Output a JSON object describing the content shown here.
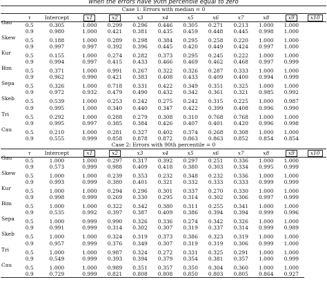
{
  "caption": "when the errors have 90th percentile equal to zero",
  "headers": [
    "τ",
    "Intercept",
    "x1",
    "x2",
    "x3",
    "x4",
    "x5",
    "x6",
    "x7",
    "x8",
    "x9",
    "x10"
  ],
  "boxed_headers": [
    "x1",
    "x2",
    "x9",
    "x10"
  ],
  "cases": [
    {
      "title": "Case 1: Errors with median = 0",
      "groups": [
        {
          "dist": "Gau",
          "rows": [
            {
              "tau": "0.5",
              "values": [
                "0.305",
                "1.000",
                "0.299",
                "0.296",
                "0.446",
                "0.305",
                "0.271",
                "0.213",
                "1.000",
                "1.000"
              ]
            },
            {
              "tau": "0.9",
              "values": [
                "0.980",
                "1.000",
                "0.421",
                "0.381",
                "0.435",
                "0.459",
                "0.448",
                "0.445",
                "0.998",
                "1.000"
              ]
            }
          ]
        },
        {
          "dist": "Skew",
          "rows": [
            {
              "tau": "0.5",
              "values": [
                "0.188",
                "1.000",
                "0.289",
                "0.298",
                "0.384",
                "0.295",
                "0.258",
                "0.220",
                "1.000",
                "1.000"
              ]
            },
            {
              "tau": "0.9",
              "values": [
                "0.997",
                "0.997",
                "0.392",
                "0.396",
                "0.445",
                "0.420",
                "0.449",
                "0.424",
                "0.997",
                "1.000"
              ]
            }
          ]
        },
        {
          "dist": "Kur",
          "rows": [
            {
              "tau": "0.5",
              "values": [
                "0.155",
                "1.000",
                "0.274",
                "0.282",
                "0.373",
                "0.295",
                "0.245",
                "0.222",
                "1.000",
                "1.000"
              ]
            },
            {
              "tau": "0.9",
              "values": [
                "0.994",
                "0.997",
                "0.415",
                "0.433",
                "0.466",
                "0.469",
                "0.462",
                "0.468",
                "0.997",
                "0.999"
              ]
            }
          ]
        },
        {
          "dist": "Bim",
          "rows": [
            {
              "tau": "0.5",
              "values": [
                "0.371",
                "1.000",
                "0.991",
                "0.267",
                "0.322",
                "0.326",
                "0.287",
                "0.333",
                "1.000",
                "1.000"
              ]
            },
            {
              "tau": "0.9",
              "values": [
                "0.962",
                "0.990",
                "0.421",
                "0.383",
                "0.408",
                "0.433",
                "0.409",
                "0.400",
                "0.994",
                "0.999"
              ]
            }
          ]
        },
        {
          "dist": "Sepa",
          "rows": [
            {
              "tau": "0.5",
              "values": [
                "0.326",
                "1.000",
                "0.718",
                "0.331",
                "0.422",
                "0.349",
                "0.351",
                "0.325",
                "1.000",
                "1.000"
              ]
            },
            {
              "tau": "0.9",
              "values": [
                "0.972",
                "0.932",
                "0.479",
                "0.490",
                "0.432",
                "0.342",
                "0.361",
                "0.321",
                "0.985",
                "0.992"
              ]
            }
          ]
        },
        {
          "dist": "Skeb",
          "rows": [
            {
              "tau": "0.5",
              "values": [
                "0.539",
                "1.000",
                "0.253",
                "0.242",
                "0.275",
                "0.242",
                "0.315",
                "0.225",
                "1.000",
                "0.987"
              ]
            },
            {
              "tau": "0.9",
              "values": [
                "0.995",
                "1.000",
                "0.340",
                "0.440",
                "0.347",
                "0.422",
                "0.399",
                "0.408",
                "0.996",
                "0.990"
              ]
            }
          ]
        },
        {
          "dist": "Tri",
          "rows": [
            {
              "tau": "0.5",
              "values": [
                "0.292",
                "1.000",
                "0.288",
                "0.279",
                "0.308",
                "0.310",
                "0.768",
                "0.768",
                "1.000",
                "1.000"
              ]
            },
            {
              "tau": "0.9",
              "values": [
                "0.995",
                "0.997",
                "0.385",
                "0.384",
                "0.426",
                "0.407",
                "0.401",
                "0.420",
                "0.996",
                "0.998"
              ]
            }
          ]
        },
        {
          "dist": "Cau",
          "rows": [
            {
              "tau": "0.5",
              "values": [
                "0.210",
                "1.000",
                "0.281",
                "0.327",
                "0.402",
                "0.374",
                "0.268",
                "0.308",
                "1.000",
                "1.000"
              ]
            },
            {
              "tau": "0.9",
              "values": [
                "0.555",
                "0.999",
                "0.858",
                "0.878",
                "0.872",
                "0.863",
                "0.863",
                "0.852",
                "0.854",
                "0.854"
              ]
            }
          ]
        }
      ]
    },
    {
      "title": "Case 2: Errors with 90th percentile = 0",
      "groups": [
        {
          "dist": "Gau",
          "rows": [
            {
              "tau": "0.5",
              "values": [
                "1.000",
                "1.000",
                "0.297",
                "0.317",
                "0.392",
                "0.297",
                "0.251",
                "0.336",
                "1.000",
                "1.000"
              ]
            },
            {
              "tau": "0.9",
              "values": [
                "0.573",
                "0.999",
                "0.988",
                "0.409",
                "0.418",
                "0.380",
                "0.303",
                "0.334",
                "0.995",
                "0.999"
              ]
            }
          ]
        },
        {
          "dist": "Skew",
          "rows": [
            {
              "tau": "0.5",
              "values": [
                "1.000",
                "1.000",
                "0.239",
                "0.353",
                "0.232",
                "0.348",
                "0.232",
                "0.336",
                "1.000",
                "1.000"
              ]
            },
            {
              "tau": "0.9",
              "values": [
                "0.993",
                "0.999",
                "0.380",
                "0.401",
                "0.321",
                "0.332",
                "0.333",
                "0.333",
                "0.999",
                "0.999"
              ]
            }
          ]
        },
        {
          "dist": "Kur",
          "rows": [
            {
              "tau": "0.5",
              "values": [
                "1.000",
                "1.000",
                "0.294",
                "0.296",
                "0.301",
                "0.337",
                "0.270",
                "0.330",
                "1.000",
                "1.000"
              ]
            },
            {
              "tau": "0.9",
              "values": [
                "0.998",
                "0.999",
                "0.269",
                "0.330",
                "0.295",
                "0.314",
                "0.302",
                "0.306",
                "0.997",
                "0.999"
              ]
            }
          ]
        },
        {
          "dist": "Bim",
          "rows": [
            {
              "tau": "0.5",
              "values": [
                "1.000",
                "1.000",
                "0.322",
                "0.342",
                "0.380",
                "0.311",
                "0.255",
                "0.341",
                "1.000",
                "1.000"
              ]
            },
            {
              "tau": "0.9",
              "values": [
                "0.535",
                "0.992",
                "0.397",
                "0.387",
                "0.409",
                "0.386",
                "0.394",
                "0.394",
                "0.999",
                "0.996"
              ]
            }
          ]
        },
        {
          "dist": "Sepa",
          "rows": [
            {
              "tau": "0.5",
              "values": [
                "1.000",
                "0.999",
                "0.990",
                "0.326",
                "0.336",
                "0.274",
                "0.342",
                "0.326",
                "1.000",
                "1.000"
              ]
            },
            {
              "tau": "0.9",
              "values": [
                "0.991",
                "0.999",
                "0.314",
                "0.302",
                "0.307",
                "0.319",
                "0.337",
                "0.314",
                "0.999",
                "0.989"
              ]
            }
          ]
        },
        {
          "dist": "Skeb",
          "rows": [
            {
              "tau": "0.5",
              "values": [
                "1.000",
                "1.000",
                "0.324",
                "0.319",
                "0.373",
                "0.386",
                "0.323",
                "0.319",
                "1.000",
                "1.000"
              ]
            },
            {
              "tau": "0.9",
              "values": [
                "0.957",
                "0.999",
                "0.376",
                "0.349",
                "0.307",
                "0.319",
                "0.319",
                "0.306",
                "0.999",
                "1.000"
              ]
            }
          ]
        },
        {
          "dist": "Tri",
          "rows": [
            {
              "tau": "0.5",
              "values": [
                "1.000",
                "1.000",
                "0.987",
                "0.324",
                "0.272",
                "0.331",
                "0.325",
                "0.291",
                "1.000",
                "1.000"
              ]
            },
            {
              "tau": "0.9",
              "values": [
                "0.549",
                "0.999",
                "0.393",
                "0.394",
                "0.379",
                "0.354",
                "0.381",
                "0.357",
                "1.000",
                "0.999"
              ]
            }
          ]
        },
        {
          "dist": "Cau",
          "rows": [
            {
              "tau": "0.5",
              "values": [
                "1.000",
                "1.000",
                "0.989",
                "0.351",
                "0.357",
                "0.350",
                "0.304",
                "0.360",
                "1.000",
                "1.000"
              ]
            },
            {
              "tau": "0.9",
              "values": [
                "0.729",
                "0.999",
                "0.821",
                "0.808",
                "0.808",
                "0.850",
                "0.803",
                "0.805",
                "0.864",
                "0.927"
              ]
            }
          ]
        }
      ]
    }
  ]
}
